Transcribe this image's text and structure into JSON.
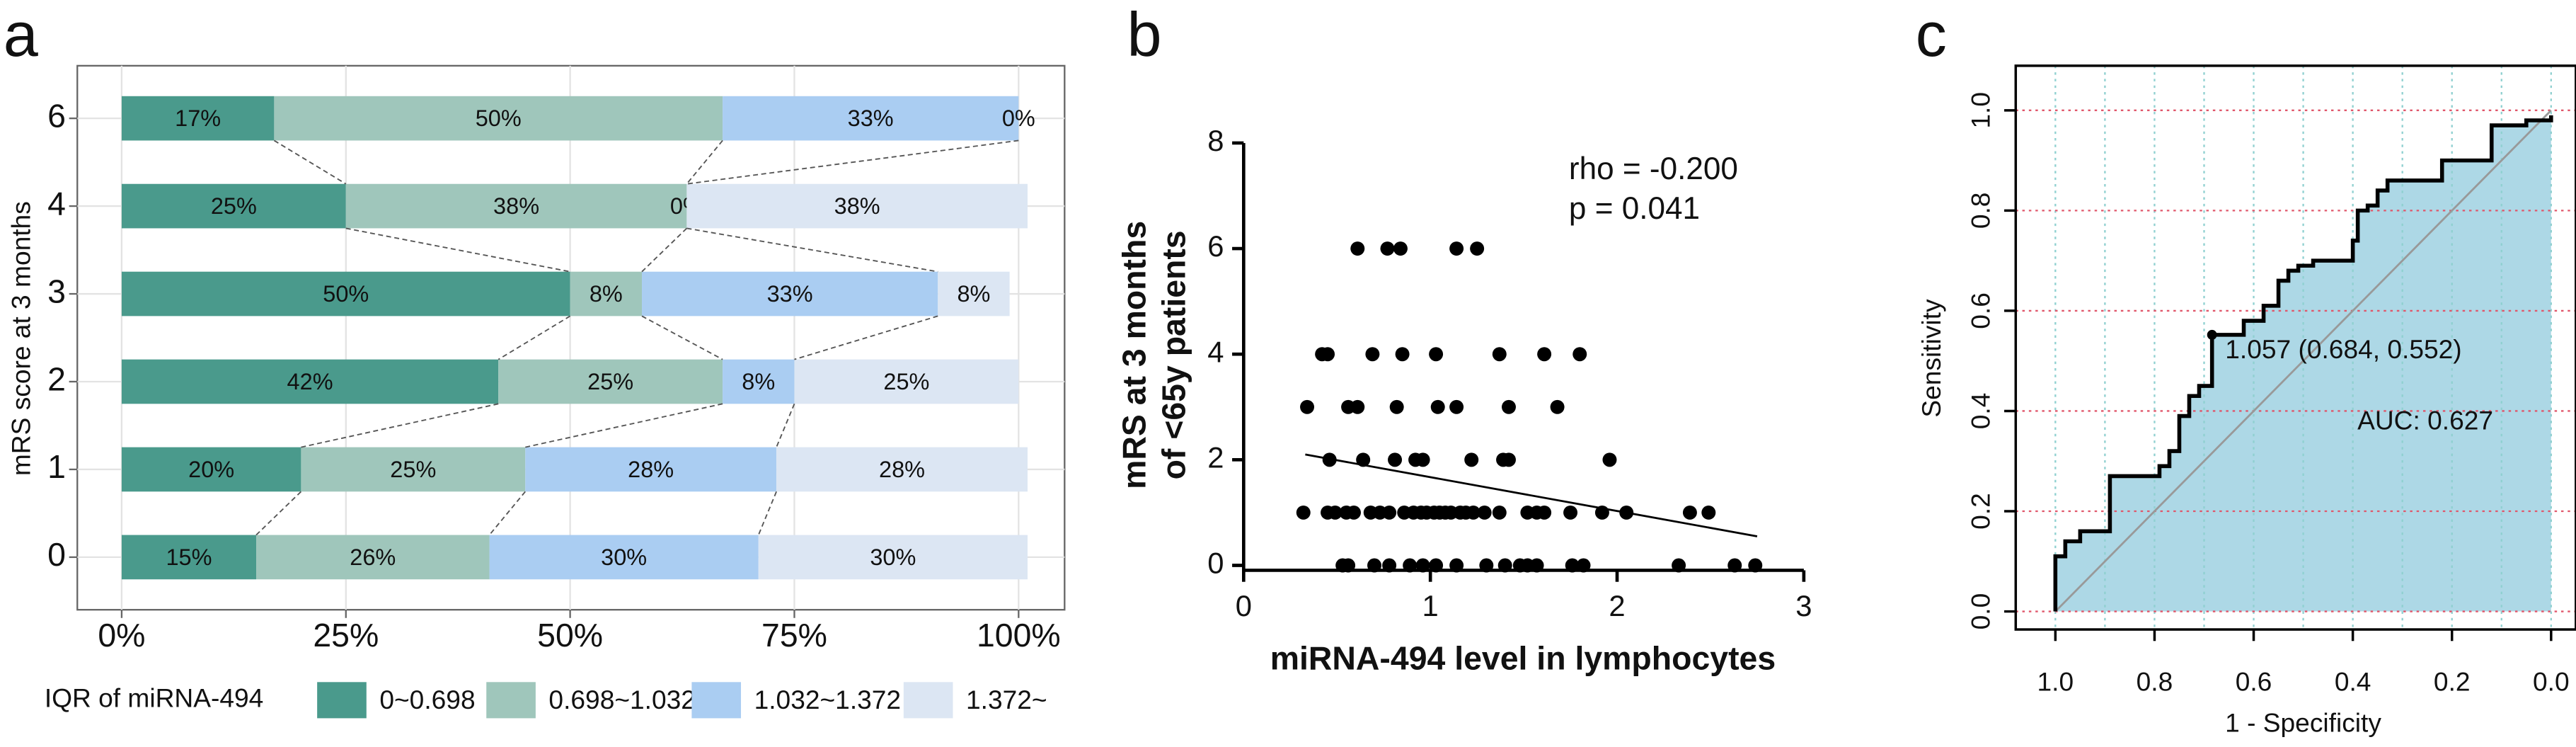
{
  "chart_data": [
    {
      "type": "bar",
      "orientation": "horizontal",
      "stacked": true,
      "panel_label": "a",
      "ylabel": "mRS score at 3 months",
      "legend_title": "IQR of miRNA-494",
      "categories": [
        "0",
        "1",
        "2",
        "3",
        "4",
        "6"
      ],
      "series": [
        {
          "name": "0~0.698",
          "color": "#4a9a8c",
          "values": [
            15,
            20,
            42,
            50,
            25,
            17
          ],
          "value_labels": [
            "15%",
            "20%",
            "42%",
            "50%",
            "25%",
            "17%"
          ]
        },
        {
          "name": "0.698~1.032",
          "color": "#9fc6bb",
          "values": [
            26,
            25,
            25,
            8,
            38,
            50
          ],
          "value_labels": [
            "26%",
            "25%",
            "25%",
            "8%",
            "38%",
            "50%"
          ]
        },
        {
          "name": "1.032~1.372",
          "color": "#aacdf2",
          "values": [
            30,
            28,
            8,
            33,
            0,
            33
          ],
          "value_labels": [
            "30%",
            "28%",
            "8%",
            "33%",
            "0%",
            "33%"
          ]
        },
        {
          "name": "1.372~",
          "color": "#dce6f3",
          "values": [
            30,
            28,
            25,
            8,
            38,
            0
          ],
          "value_labels": [
            "30%",
            "28%",
            "25%",
            "8%",
            "38%",
            "0%"
          ]
        }
      ],
      "xlim": [
        0,
        100
      ],
      "xticks": [
        {
          "value": 0,
          "label": "0%"
        },
        {
          "value": 25,
          "label": "25%"
        },
        {
          "value": 50,
          "label": "50%"
        },
        {
          "value": 75,
          "label": "75%"
        },
        {
          "value": 100,
          "label": "100%"
        }
      ],
      "grid": true,
      "legend": "bottom"
    },
    {
      "type": "scatter",
      "panel_label": "b",
      "xlabel": "miRNA-494 level in lymphocytes",
      "ylabel": [
        "mRS at 3 months",
        "of <65y patients"
      ],
      "annotations": [
        "rho = -0.200",
        "p = 0.041"
      ],
      "x": [
        0.61,
        0.77,
        0.84,
        1.14,
        1.25,
        0.42,
        0.45,
        0.69,
        0.85,
        1.03,
        1.37,
        1.61,
        1.8,
        0.34,
        0.56,
        0.61,
        0.82,
        1.04,
        1.14,
        1.42,
        1.68,
        0.46,
        0.64,
        0.81,
        0.92,
        0.96,
        1.22,
        1.39,
        1.42,
        1.96,
        0.32,
        0.45,
        0.49,
        0.55,
        0.59,
        0.68,
        0.73,
        0.78,
        0.86,
        0.91,
        0.95,
        0.98,
        1.02,
        1.05,
        1.08,
        1.11,
        1.16,
        1.19,
        1.23,
        1.29,
        1.37,
        1.52,
        1.57,
        1.61,
        1.75,
        1.92,
        2.05,
        2.39,
        2.49,
        0.53,
        0.56,
        0.7,
        0.78,
        0.89,
        0.96,
        1.03,
        1.14,
        1.3,
        1.4,
        1.48,
        1.52,
        1.57,
        1.76,
        1.82,
        2.33,
        2.63,
        2.74
      ],
      "y": [
        6,
        6,
        6,
        6,
        6,
        4,
        4,
        4,
        4,
        4,
        4,
        4,
        4,
        3,
        3,
        3,
        3,
        3,
        3,
        3,
        3,
        2,
        2,
        2,
        2,
        2,
        2,
        2,
        2,
        2,
        1,
        1,
        1,
        1,
        1,
        1,
        1,
        1,
        1,
        1,
        1,
        1,
        1,
        1,
        1,
        1,
        1,
        1,
        1,
        1,
        1,
        1,
        1,
        1,
        1,
        1,
        1,
        1,
        1,
        0,
        0,
        0,
        0,
        0,
        0,
        0,
        0,
        0,
        0,
        0,
        0,
        0,
        0,
        0,
        0,
        0,
        0
      ],
      "color": "#000000",
      "fit_line": {
        "x": [
          0.33,
          2.75
        ],
        "y": [
          2.1,
          0.55
        ]
      },
      "xlim": [
        0,
        3
      ],
      "xticks": [
        0,
        1,
        2,
        3
      ],
      "ylim": [
        0,
        8
      ],
      "yticks": [
        0,
        2,
        4,
        6,
        8
      ]
    },
    {
      "type": "line",
      "panel_label": "c",
      "xlabel": "1 - Specificity",
      "ylabel": "Sensitivity",
      "x": [
        1.0,
        1.0,
        0.98,
        0.98,
        0.95,
        0.95,
        0.89,
        0.89,
        0.79,
        0.79,
        0.77,
        0.77,
        0.75,
        0.75,
        0.73,
        0.73,
        0.71,
        0.71,
        0.684,
        0.684,
        0.62,
        0.62,
        0.58,
        0.58,
        0.55,
        0.55,
        0.53,
        0.53,
        0.51,
        0.51,
        0.48,
        0.48,
        0.4,
        0.4,
        0.39,
        0.39,
        0.37,
        0.37,
        0.35,
        0.35,
        0.33,
        0.33,
        0.22,
        0.22,
        0.12,
        0.12,
        0.05,
        0.05,
        0.0,
        0.0
      ],
      "y": [
        0.0,
        0.11,
        0.11,
        0.14,
        0.14,
        0.16,
        0.16,
        0.27,
        0.27,
        0.29,
        0.29,
        0.32,
        0.32,
        0.39,
        0.39,
        0.43,
        0.43,
        0.45,
        0.45,
        0.552,
        0.552,
        0.58,
        0.58,
        0.61,
        0.61,
        0.66,
        0.66,
        0.68,
        0.68,
        0.69,
        0.69,
        0.7,
        0.7,
        0.74,
        0.74,
        0.8,
        0.8,
        0.81,
        0.81,
        0.84,
        0.84,
        0.86,
        0.86,
        0.9,
        0.9,
        0.97,
        0.97,
        0.98,
        0.98,
        0.99
      ],
      "color": "#000000",
      "fill": "#add8e6",
      "threshold": {
        "x": 0.684,
        "y": 0.552,
        "label": "1.057 (0.684, 0.552)"
      },
      "auc_label": "AUC: 0.627",
      "xlim": [
        1.08,
        -0.05
      ],
      "xticks": [
        {
          "value": 1,
          "label": "1.0"
        },
        {
          "value": 0.8,
          "label": "0.8"
        },
        {
          "value": 0.6,
          "label": "0.6"
        },
        {
          "value": 0.4,
          "label": "0.4"
        },
        {
          "value": 0.2,
          "label": "0.2"
        },
        {
          "value": 0,
          "label": "0.0"
        }
      ],
      "ylim": [
        -0.036,
        1.089
      ],
      "yticks": [
        {
          "value": 0,
          "label": "0.0"
        },
        {
          "value": 0.2,
          "label": "0.2"
        },
        {
          "value": 0.4,
          "label": "0.4"
        },
        {
          "value": 0.6,
          "label": "0.6"
        },
        {
          "value": 0.8,
          "label": "0.8"
        },
        {
          "value": 1,
          "label": "1.0"
        }
      ],
      "xgrid": [
        1,
        0.9,
        0.8,
        0.7,
        0.6,
        0.5,
        0.4,
        0.3,
        0.2,
        0.1,
        0
      ],
      "xgrid_color": "#8fd0d0",
      "ygrid_color": "#e0566a",
      "grid": true
    }
  ]
}
